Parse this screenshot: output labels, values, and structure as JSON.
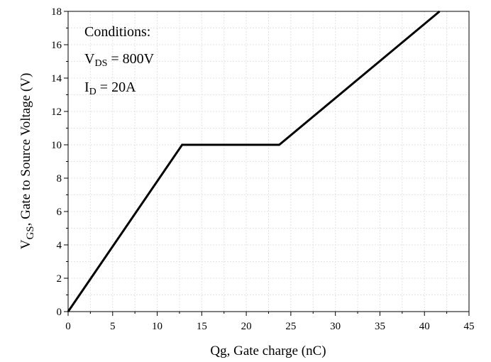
{
  "chart_data": {
    "type": "line",
    "title": "",
    "xlabel": "Qg, Gate charge (nC)",
    "ylabel": {
      "main": "V",
      "sub": "GS",
      "rest": ", Gate to Source Voltage (V)"
    },
    "xlim": [
      0,
      45
    ],
    "ylim": [
      0,
      18
    ],
    "x_ticks": [
      0,
      5,
      10,
      15,
      20,
      25,
      30,
      35,
      40,
      45
    ],
    "y_ticks": [
      0,
      2,
      4,
      6,
      8,
      10,
      12,
      14,
      16,
      18
    ],
    "grid": true,
    "series": [
      {
        "name": "",
        "color": "#000000",
        "x": [
          0,
          12.8,
          23.7,
          41.7
        ],
        "y": [
          0,
          10,
          10,
          18
        ]
      }
    ],
    "annotations": {
      "heading": "Conditions:",
      "vds": {
        "main": "V",
        "sub": "DS",
        "rest": " = 800V"
      },
      "id": {
        "main": "I",
        "sub": "D",
        "rest": " = 20A"
      }
    }
  }
}
